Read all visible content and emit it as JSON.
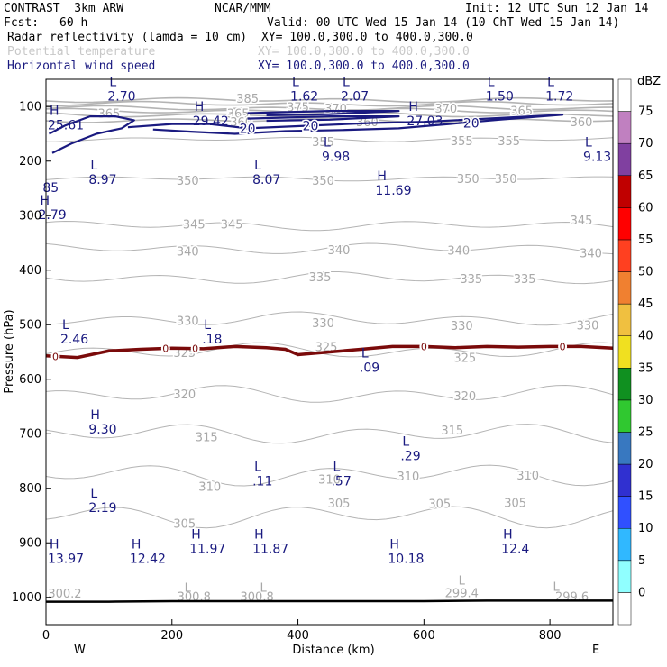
{
  "header": {
    "model": "CONTRAST  3km ARW",
    "org": "NCAR/MMM",
    "init": "Init: 12 UTC Sun 12 Jan 14",
    "fcst_label": "Fcst:",
    "fcst_value": "60 h",
    "valid": "Valid: 00 UTC Wed 15 Jan 14 (10 ChT Wed 15 Jan 14)",
    "fields": [
      {
        "name": "Radar reflectivity (lamda = 10 cm)",
        "xy": "XY= 100.0,300.0 to 400.0,300.0",
        "color": "#000000"
      },
      {
        "name": "Potential temperature",
        "xy": "XY= 100.0,300.0 to 400.0,300.0",
        "color": "#c8c8c8"
      },
      {
        "name": "Horizontal wind speed",
        "xy": "XY= 100.0,300.0 to 400.0,300.0",
        "color": "#1a1a80"
      }
    ]
  },
  "chart_data": {
    "type": "cross-section",
    "xlabel": "Distance (km)",
    "ylabel": "Pressure (hPa)",
    "xlim": [
      0,
      900
    ],
    "ylim": [
      1050,
      50
    ],
    "xticks": [
      0,
      200,
      400,
      600,
      800
    ],
    "yticks": [
      100,
      200,
      300,
      400,
      500,
      600,
      700,
      800,
      900,
      1000
    ],
    "west_label": "W",
    "east_label": "E",
    "colorbar": {
      "unit": "dBZ",
      "levels": [
        0,
        5,
        10,
        15,
        20,
        25,
        30,
        35,
        40,
        45,
        50,
        55,
        60,
        65,
        70,
        75
      ],
      "colors": [
        "#ffffff",
        "#90ffff",
        "#30b8ff",
        "#3050ff",
        "#3030d0",
        "#3878c0",
        "#30c830",
        "#109020",
        "#f0e020",
        "#f0c040",
        "#f08030",
        "#ff4020",
        "#ff0000",
        "#c00000",
        "#8040a0",
        "#c080c0",
        "#ffffff"
      ]
    },
    "theta_contours": [
      {
        "label": "385",
        "p": 88
      },
      {
        "label": "380",
        "p": 95
      },
      {
        "label": "375",
        "p": 103
      },
      {
        "label": "370",
        "p": 108
      },
      {
        "label": "365",
        "p": 115
      },
      {
        "label": "360",
        "p": 125
      },
      {
        "label": "355",
        "p": 160
      },
      {
        "label": "350",
        "p": 232
      },
      {
        "label": "345",
        "p": 318
      },
      {
        "label": "340",
        "p": 360
      },
      {
        "label": "335",
        "p": 414
      },
      {
        "label": "330",
        "p": 490
      },
      {
        "label": "325",
        "p": 548
      },
      {
        "label": "320",
        "p": 628
      },
      {
        "label": "315",
        "p": 700
      },
      {
        "label": "310",
        "p": 775
      },
      {
        "label": "305",
        "p": 850
      }
    ],
    "theta_labels": [
      {
        "text": "385",
        "x": 320,
        "p": 85
      },
      {
        "text": "375",
        "x": 400,
        "p": 100
      },
      {
        "text": "370",
        "x": 460,
        "p": 103
      },
      {
        "text": "370",
        "x": 635,
        "p": 103
      },
      {
        "text": "365",
        "x": 100,
        "p": 112
      },
      {
        "text": "365",
        "x": 305,
        "p": 112
      },
      {
        "text": "365",
        "x": 755,
        "p": 107
      },
      {
        "text": "360",
        "x": 310,
        "p": 128
      },
      {
        "text": "360",
        "x": 510,
        "p": 128
      },
      {
        "text": "360",
        "x": 850,
        "p": 128
      },
      {
        "text": "355",
        "x": 440,
        "p": 164
      },
      {
        "text": "355",
        "x": 660,
        "p": 162
      },
      {
        "text": "355",
        "x": 735,
        "p": 162
      },
      {
        "text": "350",
        "x": 225,
        "p": 235
      },
      {
        "text": "350",
        "x": 440,
        "p": 235
      },
      {
        "text": "350",
        "x": 670,
        "p": 232
      },
      {
        "text": "350",
        "x": 730,
        "p": 232
      },
      {
        "text": "345",
        "x": 235,
        "p": 315
      },
      {
        "text": "345",
        "x": 295,
        "p": 315
      },
      {
        "text": "345",
        "x": 850,
        "p": 308
      },
      {
        "text": "340",
        "x": 225,
        "p": 365
      },
      {
        "text": "340",
        "x": 465,
        "p": 362
      },
      {
        "text": "340",
        "x": 655,
        "p": 363
      },
      {
        "text": "340",
        "x": 865,
        "p": 368
      },
      {
        "text": "335",
        "x": 435,
        "p": 412
      },
      {
        "text": "335",
        "x": 675,
        "p": 415
      },
      {
        "text": "335",
        "x": 760,
        "p": 415
      },
      {
        "text": "330",
        "x": 225,
        "p": 492
      },
      {
        "text": "330",
        "x": 440,
        "p": 496
      },
      {
        "text": "330",
        "x": 660,
        "p": 501
      },
      {
        "text": "330",
        "x": 860,
        "p": 500
      },
      {
        "text": "325",
        "x": 220,
        "p": 551
      },
      {
        "text": "325",
        "x": 445,
        "p": 540
      },
      {
        "text": "325",
        "x": 665,
        "p": 560
      },
      {
        "text": "320",
        "x": 220,
        "p": 627
      },
      {
        "text": "320",
        "x": 665,
        "p": 630
      },
      {
        "text": "315",
        "x": 255,
        "p": 705
      },
      {
        "text": "315",
        "x": 645,
        "p": 693
      },
      {
        "text": "310",
        "x": 450,
        "p": 783
      },
      {
        "text": "310",
        "x": 575,
        "p": 777
      },
      {
        "text": "310",
        "x": 765,
        "p": 776
      },
      {
        "text": "310",
        "x": 260,
        "p": 796
      },
      {
        "text": "305",
        "x": 220,
        "p": 864
      },
      {
        "text": "305",
        "x": 465,
        "p": 827
      },
      {
        "text": "305",
        "x": 625,
        "p": 828
      },
      {
        "text": "305",
        "x": 745,
        "p": 826
      },
      {
        "text": "300.2",
        "x": 30,
        "p": 992
      },
      {
        "text": "300.8",
        "x": 235,
        "p": 998
      },
      {
        "text": "300.8",
        "x": 335,
        "p": 998
      },
      {
        "text": "299.4",
        "x": 660,
        "p": 991
      },
      {
        "text": "299.6",
        "x": 835,
        "p": 998
      }
    ],
    "theta_extrema": [
      {
        "text": "L",
        "x": 225,
        "p": 981
      },
      {
        "text": "L",
        "x": 345,
        "p": 981
      },
      {
        "text": "L",
        "x": 660,
        "p": 968
      },
      {
        "text": "L",
        "x": 810,
        "p": 980
      }
    ],
    "wind_extrema": [
      {
        "type": "L",
        "value": "2.70",
        "x": 115,
        "p": 72
      },
      {
        "type": "L",
        "value": "1.62",
        "x": 405,
        "p": 72
      },
      {
        "type": "L",
        "value": "2.07",
        "x": 485,
        "p": 72
      },
      {
        "type": "L",
        "value": "1.50",
        "x": 715,
        "p": 72
      },
      {
        "type": "L",
        "value": "1.72",
        "x": 810,
        "p": 72
      },
      {
        "type": "H",
        "value": "25.61",
        "x": 20,
        "p": 125
      },
      {
        "type": "H",
        "value": "29.42",
        "x": 250,
        "p": 118
      },
      {
        "type": "H",
        "value": "27.03",
        "x": 590,
        "p": 118
      },
      {
        "type": "L",
        "value": "9.98",
        "x": 455,
        "p": 183
      },
      {
        "type": "L",
        "value": "9.13",
        "x": 870,
        "p": 183
      },
      {
        "type": "",
        "value": "85",
        "x": 12,
        "p": 240
      },
      {
        "type": "L",
        "value": "8.97",
        "x": 85,
        "p": 225
      },
      {
        "type": "L",
        "value": "8.07",
        "x": 345,
        "p": 225
      },
      {
        "type": "H",
        "value": "11.69",
        "x": 540,
        "p": 245
      },
      {
        "type": "H",
        "value": "2.79",
        "x": 5,
        "p": 290
      },
      {
        "type": "L",
        "value": "2.46",
        "x": 40,
        "p": 518
      },
      {
        "type": "L",
        "value": ".18",
        "x": 265,
        "p": 518
      },
      {
        "type": "L",
        "value": ".09",
        "x": 515,
        "p": 570
      },
      {
        "type": "H",
        "value": "9.30",
        "x": 85,
        "p": 683
      },
      {
        "type": "L",
        "value": ".29",
        "x": 580,
        "p": 732
      },
      {
        "type": "L",
        "value": ".11",
        "x": 345,
        "p": 778
      },
      {
        "type": "L",
        "value": ".57",
        "x": 470,
        "p": 778
      },
      {
        "type": "L",
        "value": "2.19",
        "x": 85,
        "p": 827
      },
      {
        "type": "H",
        "value": "13.97",
        "x": 20,
        "p": 920
      },
      {
        "type": "H",
        "value": "12.42",
        "x": 150,
        "p": 920
      },
      {
        "type": "H",
        "value": "11.97",
        "x": 245,
        "p": 902
      },
      {
        "type": "H",
        "value": "11.87",
        "x": 345,
        "p": 902
      },
      {
        "type": "H",
        "value": "10.18",
        "x": 560,
        "p": 920
      },
      {
        "type": "H",
        "value": "12.4",
        "x": 740,
        "p": 902
      }
    ],
    "wind_contours": [
      {
        "label": "20",
        "value": 20
      }
    ],
    "wind_contour_labels": [
      {
        "text": "20",
        "x": 320,
        "p": 140
      },
      {
        "text": "20",
        "x": 420,
        "p": 135
      },
      {
        "text": "20",
        "x": 675,
        "p": 130
      }
    ],
    "reflectivity_zero": {
      "label": "0",
      "x": [
        0,
        50,
        100,
        150,
        200,
        250,
        300,
        350,
        380,
        400,
        450,
        500,
        550,
        600,
        650,
        700,
        750,
        800,
        850,
        900
      ],
      "p": [
        557,
        560,
        548,
        545,
        543,
        544,
        540,
        542,
        545,
        555,
        550,
        545,
        540,
        540,
        542,
        540,
        541,
        540,
        540,
        543
      ],
      "label_x": [
        15,
        190,
        237,
        600,
        820
      ]
    },
    "surface_p": [
      1008,
      1008,
      1007,
      1007,
      1007,
      1007,
      1007,
      1006,
      1006,
      1006
    ]
  }
}
